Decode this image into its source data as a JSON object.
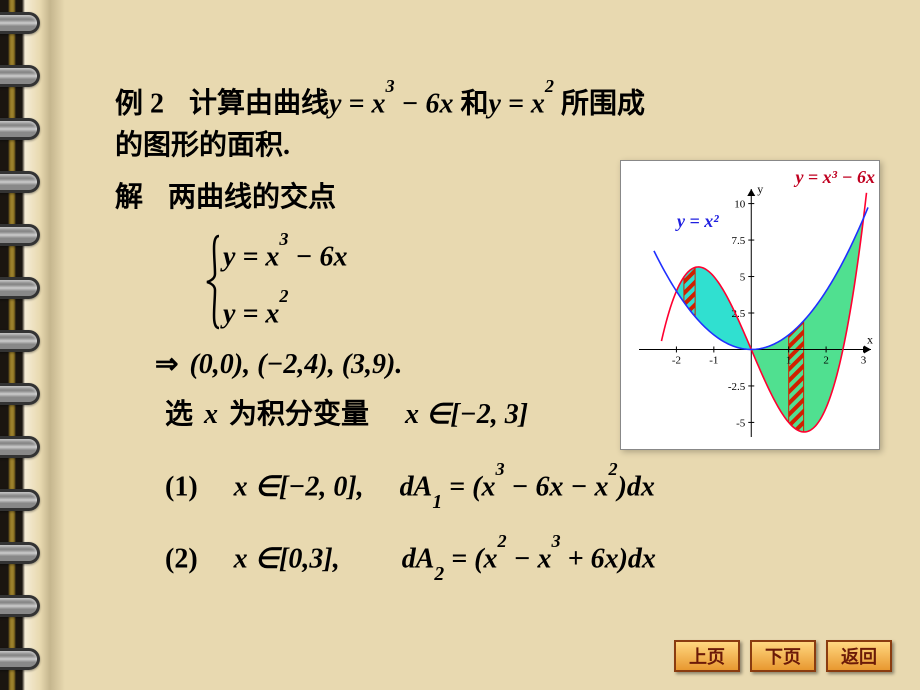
{
  "problem": {
    "label_prefix": "例 2",
    "line1_a": "计算由曲线",
    "line1_eq1_lhs": "y",
    "line1_eq1_rhs_a": "x",
    "line1_eq1_exp1": "3",
    "line1_eq1_op": "− 6",
    "line1_eq1_rhs_b": "x",
    "line1_b": "和",
    "line1_eq2_lhs": "y",
    "line1_eq2_rhs": "x",
    "line1_eq2_exp": "2",
    "line1_c": "所围成",
    "line2": "的图形的面积."
  },
  "solution": {
    "label": "解",
    "intersect_text": "两曲线的交点",
    "sys_eq1_lhs": "y",
    "sys_eq1_rhs_a": "x",
    "sys_eq1_exp": "3",
    "sys_eq1_op": "− 6",
    "sys_eq1_rhs_b": "x",
    "sys_eq2_lhs": "y",
    "sys_eq2_rhs": "x",
    "sys_eq2_exp": "2",
    "points": "(0,0),   (−2,4),   (3,9).",
    "pick_a": "选",
    "pick_var": "x",
    "pick_b": "为积分变量",
    "pick_range": "x ∈[−2, 3]",
    "case1_label": "(1)",
    "case1_range": "x ∈[−2, 0],",
    "case1_dA_lhs": "dA",
    "case1_dA_sub": "1",
    "case1_dA_eq": "= (",
    "case1_t1": "x",
    "case1_e1": "3",
    "case1_op1": "− 6",
    "case1_t2": "x",
    "case1_op2": "−",
    "case1_t3": "x",
    "case1_e3": "2",
    "case1_tail": ")dx",
    "case2_label": "(2)",
    "case2_range": "x ∈[0,3],",
    "case2_dA_lhs": "dA",
    "case2_dA_sub": "2",
    "case2_dA_eq": "= (",
    "case2_t1": "x",
    "case2_e1": "2",
    "case2_op1": "−",
    "case2_t2": "x",
    "case2_e2": "3",
    "case2_op2": "+ 6",
    "case2_t3": "x",
    "case2_tail": ")dx"
  },
  "graph": {
    "xlim": [
      -3,
      3.2
    ],
    "ylim": [
      -6,
      11
    ],
    "xticks": [
      -2,
      -1,
      1,
      2,
      3
    ],
    "yticks": [
      -5,
      -2.5,
      2.5,
      5,
      7.5,
      10
    ],
    "axis_label_x": "x",
    "axis_label_y": "y",
    "curve1_label": "y = x³ − 6x",
    "curve2_label": "y = x²",
    "colors": {
      "background": "#ffffff",
      "axis": "#000000",
      "curve_cubic": "#ff0030",
      "curve_parab": "#2030ff",
      "fill_left": "#30e0d0",
      "fill_right": "#50e090",
      "hatch": "#d02000",
      "label_cubic": "#c00020",
      "label_parab": "#2020e0"
    },
    "fontsize_ticks": 11,
    "fontsize_labels": 18
  },
  "nav": {
    "prev": "上页",
    "next": "下页",
    "back": "返回"
  },
  "style": {
    "bg": "#e8d9b0",
    "text": "#000000",
    "btn_bg_top": "#ffd780",
    "btn_bg_bot": "#e89830",
    "btn_border": "#8a3c10",
    "btn_text": "#6b1a08",
    "main_fontsize_pt": 21
  }
}
